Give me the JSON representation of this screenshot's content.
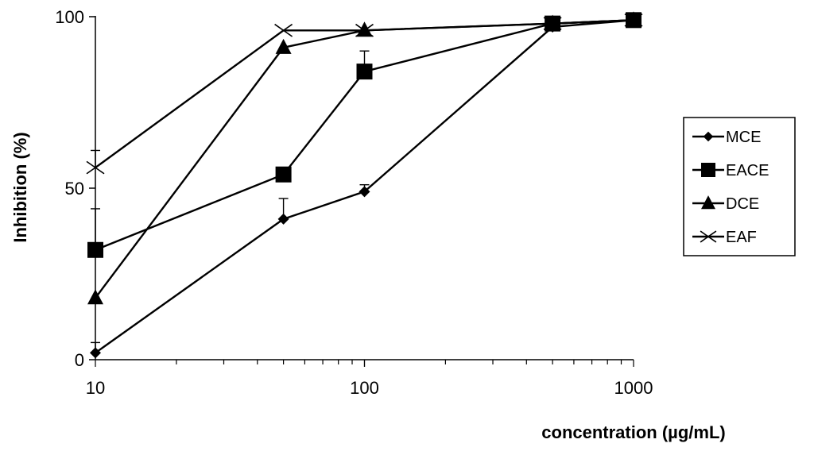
{
  "chart_data": {
    "type": "line",
    "xlabel": "concentration (µg/mL)",
    "ylabel": "Inhibition (%)",
    "xscale": "log",
    "xlim": [
      10,
      1000
    ],
    "ylim": [
      0,
      100
    ],
    "x_ticks": [
      "10",
      "100",
      "1000"
    ],
    "y_ticks": [
      "0",
      "50",
      "100"
    ],
    "x": [
      10,
      50,
      100,
      500,
      1000
    ],
    "legend_position": "right",
    "grid": false,
    "series": [
      {
        "name": "MCE",
        "marker": "diamond",
        "values": [
          2,
          41,
          49,
          97,
          99
        ],
        "errors": [
          3,
          6,
          2,
          1,
          1
        ]
      },
      {
        "name": "EACE",
        "marker": "square",
        "values": [
          32,
          54,
          84,
          98,
          99
        ],
        "errors": [
          12,
          2,
          6,
          1,
          1
        ]
      },
      {
        "name": "DCE",
        "marker": "triangle",
        "values": [
          18,
          91,
          96,
          98,
          99
        ],
        "errors": [
          0,
          0,
          0,
          0,
          0
        ]
      },
      {
        "name": "EAF",
        "marker": "x",
        "values": [
          56,
          96,
          96,
          98,
          99
        ],
        "errors": [
          5,
          0,
          0,
          0,
          0
        ]
      }
    ],
    "colors": {
      "line": "#000000",
      "background": "#ffffff"
    }
  }
}
